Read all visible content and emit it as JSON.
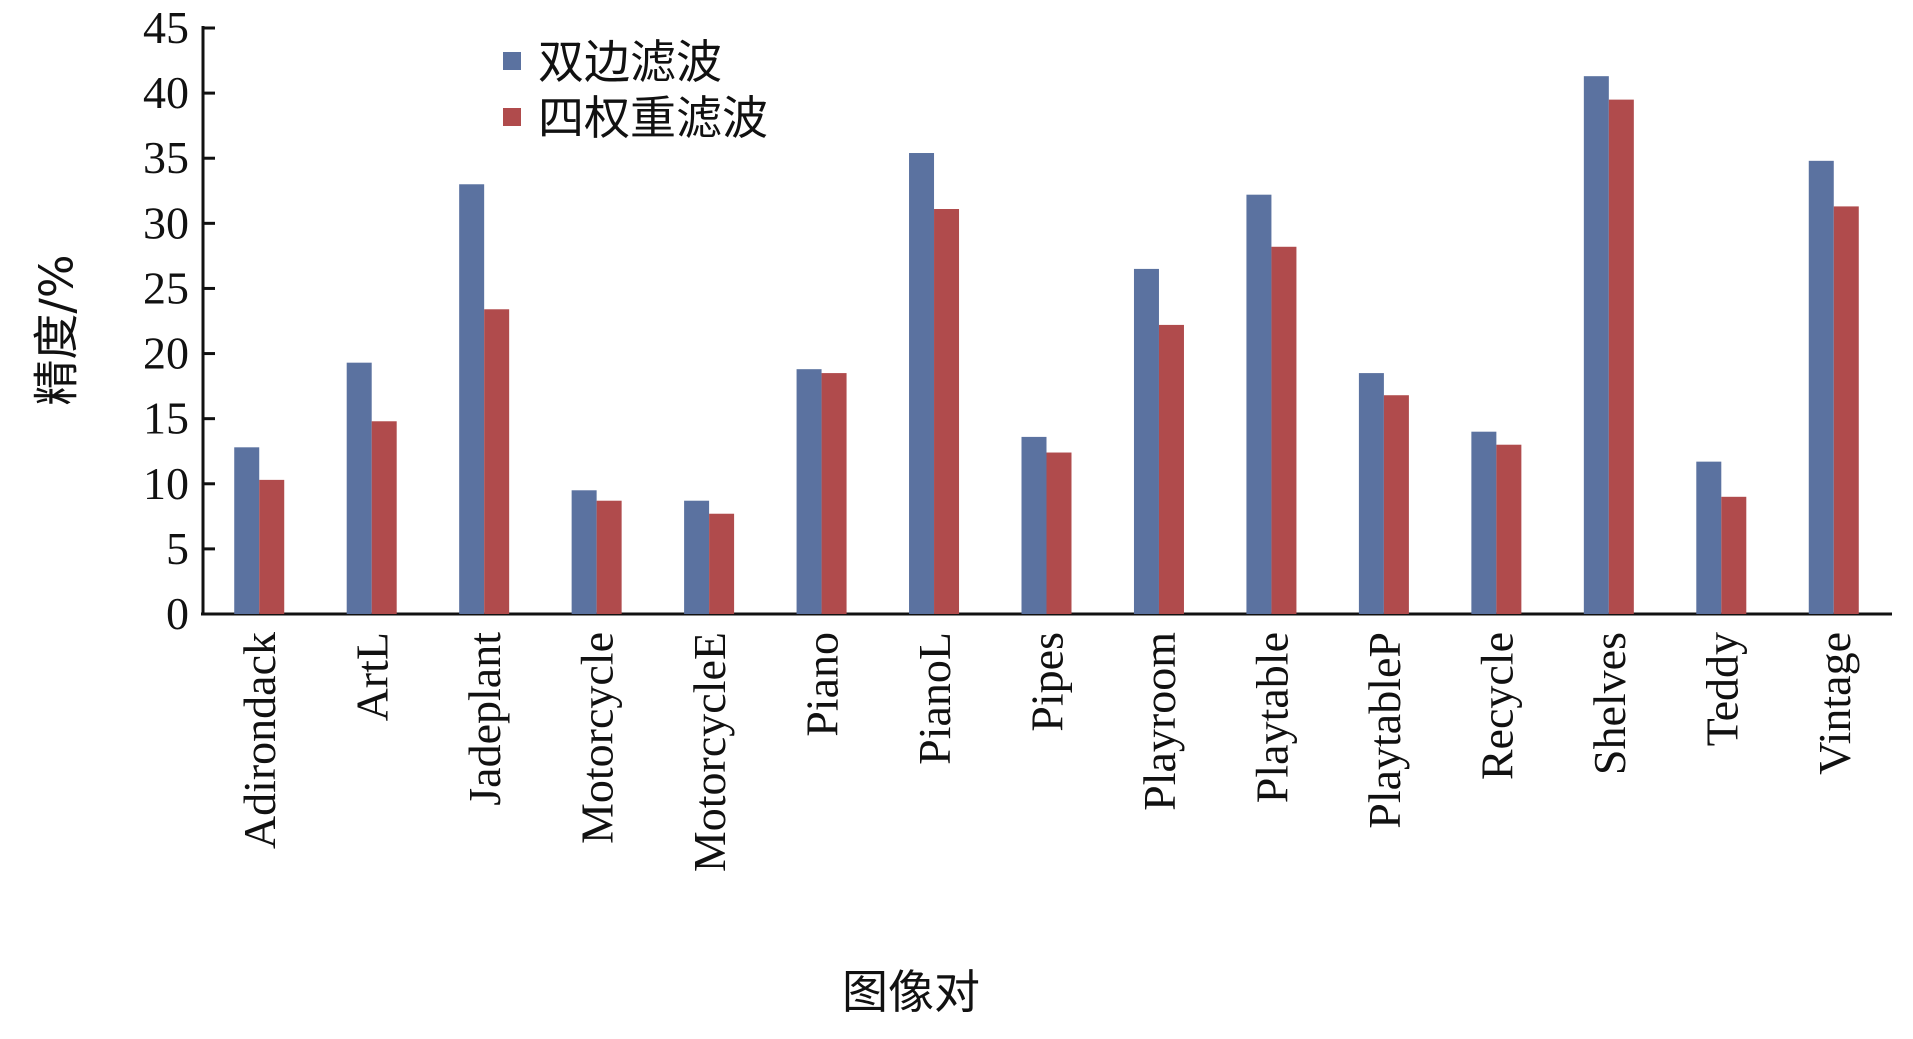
{
  "chart_data": {
    "type": "bar",
    "x_label": "图像对",
    "y_label": "精度/%",
    "categories": [
      "Adirondack",
      "ArtL",
      "Jadeplant",
      "Motorcycle",
      "MotorcycleE",
      "Piano",
      "PianoL",
      "Pipes",
      "Playroom",
      "Playtable",
      "PlaytableP",
      "Recycle",
      "Shelves",
      "Teddy",
      "Vintage"
    ],
    "series": [
      {
        "name": "双边滤波",
        "color": "#5b72a0",
        "values": [
          12.8,
          19.3,
          33.0,
          9.5,
          8.7,
          18.8,
          35.4,
          13.6,
          26.5,
          32.2,
          18.5,
          14.0,
          41.3,
          11.7,
          34.8
        ]
      },
      {
        "name": "四权重滤波",
        "color": "#b04b4c",
        "values": [
          10.3,
          14.8,
          23.4,
          8.7,
          7.7,
          18.5,
          31.1,
          12.4,
          22.2,
          28.2,
          16.8,
          13.0,
          39.5,
          9.0,
          31.3
        ]
      }
    ],
    "ylim": [
      0,
      45
    ],
    "yticks": [
      0,
      5,
      10,
      15,
      20,
      25,
      30,
      35,
      40,
      45
    ],
    "legend": "upper left",
    "grid": false
  }
}
